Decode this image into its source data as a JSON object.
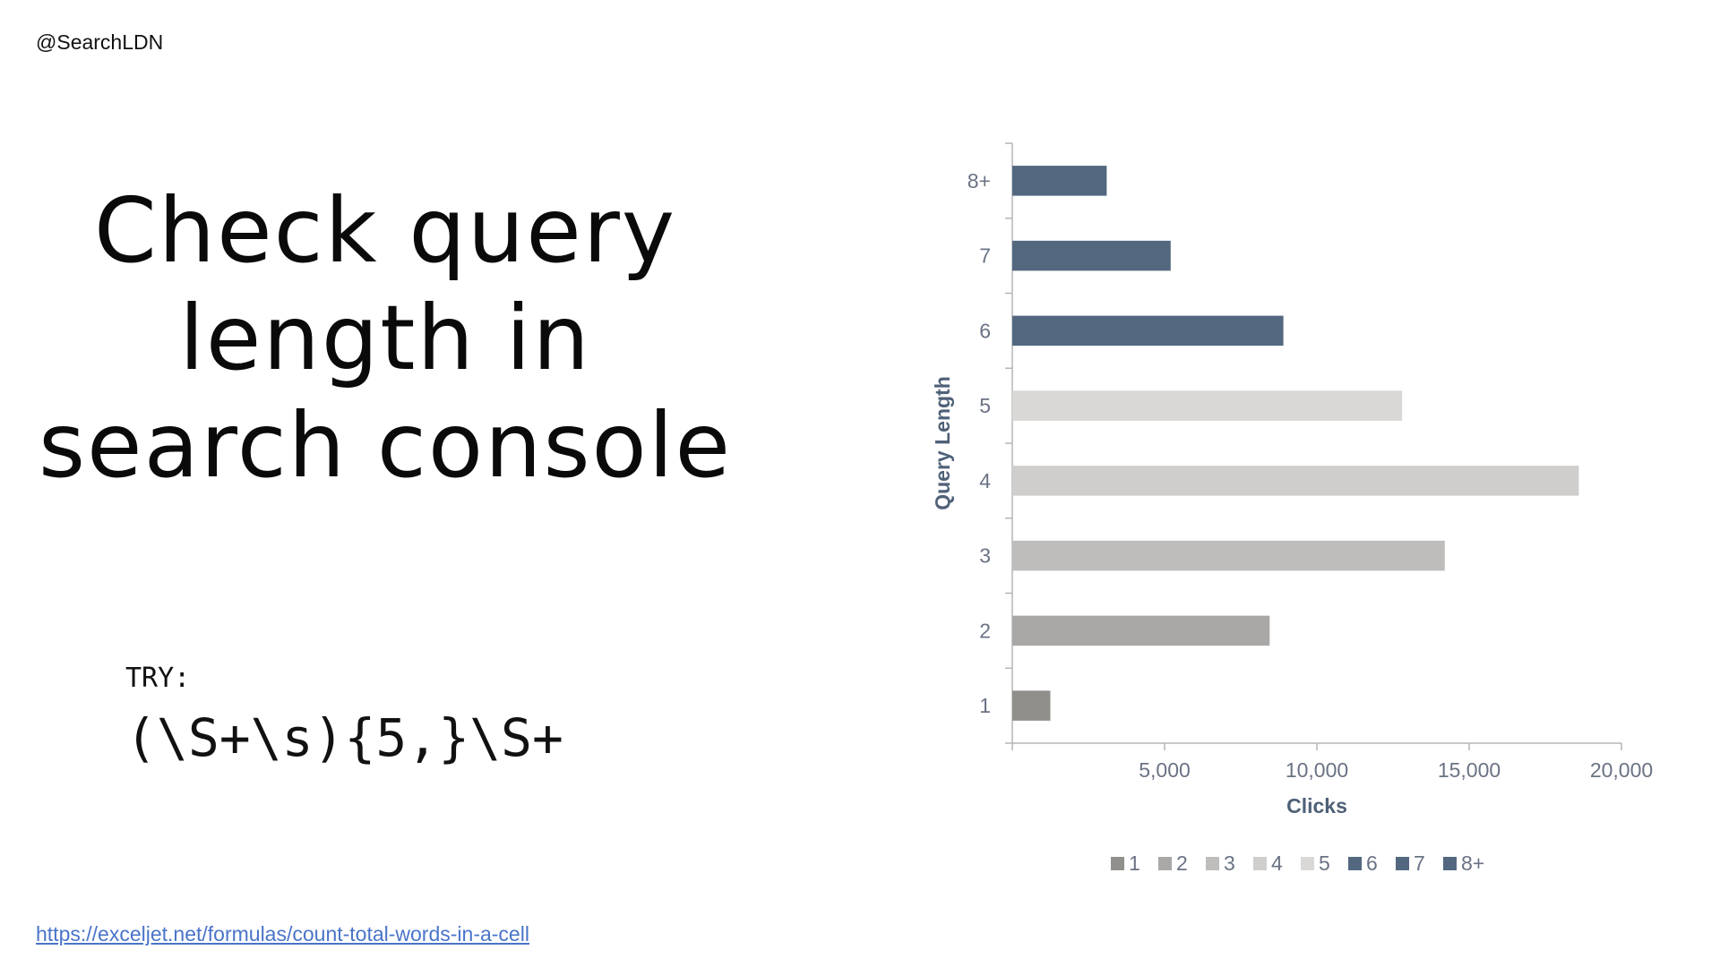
{
  "header": {
    "handle": "@SearchLDN"
  },
  "slide": {
    "title": "Check query length in search console",
    "try_label": "TRY:",
    "regex": "(\\S+\\s){5,}\\S+",
    "link": "https://exceljet.net/formulas/count-total-words-in-a-cell"
  },
  "chart_data": {
    "type": "bar",
    "orientation": "horizontal",
    "categories": [
      "1",
      "2",
      "3",
      "4",
      "5",
      "6",
      "7",
      "8+"
    ],
    "values": [
      1250,
      8450,
      14200,
      18600,
      12800,
      8900,
      5200,
      3100
    ],
    "colors": [
      "#918f8c",
      "#a9a8a6",
      "#bebdbb",
      "#cfcecc",
      "#d9d8d6",
      "#53687f",
      "#53687f",
      "#53687f"
    ],
    "xlabel": "Clicks",
    "ylabel": "Query Length",
    "xlim": [
      0,
      20000
    ],
    "xticks": [
      5000,
      10000,
      15000,
      20000
    ],
    "xtick_labels": [
      "5,000",
      "10,000",
      "15,000",
      "20,000"
    ],
    "grid": false,
    "legend": "bottom"
  }
}
